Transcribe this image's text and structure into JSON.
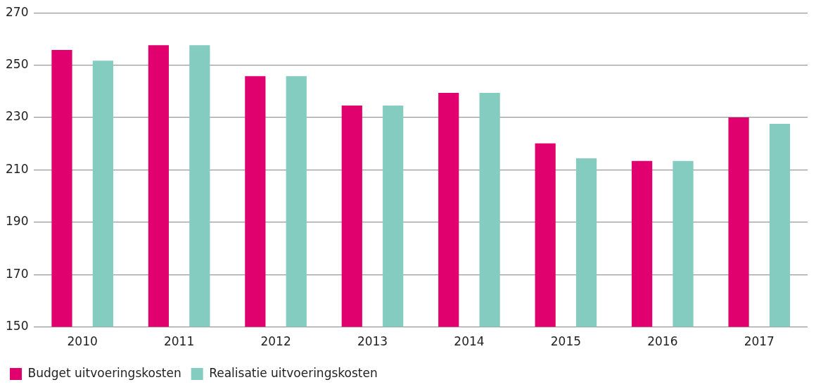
{
  "chart_data": {
    "type": "bar",
    "categories": [
      "2010",
      "2011",
      "2012",
      "2013",
      "2014",
      "2015",
      "2016",
      "2017"
    ],
    "series": [
      {
        "name": "Budget uitvoeringskosten",
        "color": "#e0006e",
        "values": [
          255.8,
          257.6,
          245.8,
          234.6,
          239.4,
          220.1,
          213.4,
          230.0
        ]
      },
      {
        "name": "Realisatie uitvoeringskosten",
        "color": "#84cbc0",
        "values": [
          251.7,
          257.6,
          245.8,
          234.6,
          239.4,
          214.4,
          213.4,
          227.6
        ]
      }
    ],
    "ylim": [
      150,
      270
    ],
    "yticks": [
      150,
      170,
      190,
      210,
      230,
      250,
      270
    ],
    "grid": "y",
    "legend": "bottom left"
  }
}
